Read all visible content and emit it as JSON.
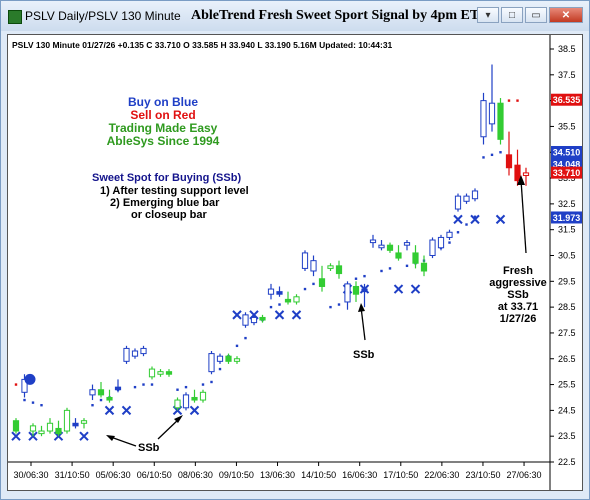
{
  "window": {
    "title": "PSLV  Daily/PSLV 130 Minute",
    "chart_title": "AbleTrend Fresh Sweet Sport Signal by 4pm ET",
    "buttons": {
      "minimize": "▾",
      "restore": "□",
      "maximize": "▭",
      "close": "✕"
    }
  },
  "info_line": "PSLV 130 Minute 01/27/26 +0.135 C 33.710 O 33.585 H 33.940 L 33.190 5.16M Updated: 10:44:31",
  "legend_block": [
    {
      "text": "Buy on Blue",
      "color": "#1f3fc6"
    },
    {
      "text": "Sell on Red",
      "color": "#e01010"
    },
    {
      "text": "Trading Made Easy",
      "color": "#2f9a1f"
    },
    {
      "text": "AbleSys Since 1994",
      "color": "#2f9a1f"
    }
  ],
  "notes": [
    {
      "text": "Sweet Spot for Buying (SSb)",
      "color": "#14148c"
    },
    {
      "text": "1) After testing support level",
      "color": "#000000"
    },
    {
      "text": "2) Emerging blue bar",
      "color": "#000000"
    },
    {
      "text": "or closeup bar",
      "color": "#000000"
    }
  ],
  "annotations": {
    "ssb_1": "SSb",
    "ssb_2": "SSb",
    "fresh": [
      "Fresh",
      "aggressive",
      "SSb",
      "at 33.71",
      "1/27/26"
    ]
  },
  "colors": {
    "blue": "#1f3fc6",
    "red": "#e01010",
    "green": "#33cc33",
    "navy": "#14148c"
  },
  "chart_data": {
    "type": "candlestick",
    "symbol": "PSLV",
    "interval": "130 Minute",
    "y_ticks": [
      "38.5",
      "37.5",
      "36.5",
      "35.5",
      "34.5",
      "33.5",
      "32.5",
      "31.5",
      "30.5",
      "29.5",
      "28.5",
      "27.5",
      "26.5",
      "25.5",
      "24.5",
      "23.5",
      "22.5"
    ],
    "ylim": [
      22.5,
      38.5
    ],
    "x_ticks": [
      "30/06:30",
      "31/10:50",
      "05/06:30",
      "06/10:50",
      "08/06:30",
      "09/10:50",
      "13/06:30",
      "14/10:50",
      "16/06:30",
      "17/10:50",
      "22/06:30",
      "23/10:50",
      "27/06:30"
    ],
    "price_labels": [
      {
        "text": "36.535",
        "value": 36.535,
        "bg": "#e01010"
      },
      {
        "text": "34.510",
        "value": 34.51,
        "bg": "#1f3fc6"
      },
      {
        "text": "34.048",
        "value": 34.048,
        "bg": "#1f3fc6"
      },
      {
        "text": "33.710",
        "value": 33.71,
        "bg": "#e01010"
      },
      {
        "text": "31.973",
        "value": 31.973,
        "bg": "#1f3fc6"
      }
    ],
    "candles": [
      {
        "o": 24.1,
        "h": 24.2,
        "l": 23.6,
        "c": 23.7,
        "color": "green"
      },
      {
        "o": 25.2,
        "h": 25.9,
        "l": 25.0,
        "c": 25.7,
        "color": "blue"
      },
      {
        "o": 23.7,
        "h": 24.0,
        "l": 23.5,
        "c": 23.9,
        "color": "green"
      },
      {
        "o": 23.6,
        "h": 23.9,
        "l": 23.5,
        "c": 23.7,
        "color": "green"
      },
      {
        "o": 23.7,
        "h": 24.2,
        "l": 23.6,
        "c": 24.0,
        "color": "green"
      },
      {
        "o": 23.8,
        "h": 24.1,
        "l": 23.5,
        "c": 23.6,
        "color": "green"
      },
      {
        "o": 23.7,
        "h": 24.6,
        "l": 23.6,
        "c": 24.5,
        "color": "green"
      },
      {
        "o": 24.0,
        "h": 24.2,
        "l": 23.8,
        "c": 23.9,
        "color": "blue"
      },
      {
        "o": 24.0,
        "h": 24.2,
        "l": 23.8,
        "c": 24.1,
        "color": "green"
      },
      {
        "o": 25.1,
        "h": 25.5,
        "l": 24.9,
        "c": 25.3,
        "color": "blue"
      },
      {
        "o": 25.3,
        "h": 25.6,
        "l": 25.0,
        "c": 25.1,
        "color": "green"
      },
      {
        "o": 25.0,
        "h": 25.3,
        "l": 24.8,
        "c": 24.9,
        "color": "green"
      },
      {
        "o": 25.4,
        "h": 25.7,
        "l": 25.2,
        "c": 25.3,
        "color": "blue"
      },
      {
        "o": 26.4,
        "h": 27.0,
        "l": 26.3,
        "c": 26.9,
        "color": "blue"
      },
      {
        "o": 26.6,
        "h": 26.9,
        "l": 26.5,
        "c": 26.8,
        "color": "blue"
      },
      {
        "o": 26.7,
        "h": 27.0,
        "l": 26.6,
        "c": 26.9,
        "color": "blue"
      },
      {
        "o": 25.8,
        "h": 26.2,
        "l": 25.7,
        "c": 26.1,
        "color": "green"
      },
      {
        "o": 25.9,
        "h": 26.1,
        "l": 25.8,
        "c": 26.0,
        "color": "green"
      },
      {
        "o": 26.0,
        "h": 26.1,
        "l": 25.8,
        "c": 25.9,
        "color": "green"
      },
      {
        "o": 24.6,
        "h": 25.0,
        "l": 24.5,
        "c": 24.9,
        "color": "green"
      },
      {
        "o": 24.6,
        "h": 25.2,
        "l": 24.5,
        "c": 25.1,
        "color": "blue"
      },
      {
        "o": 25.0,
        "h": 25.3,
        "l": 24.8,
        "c": 24.9,
        "color": "green"
      },
      {
        "o": 24.9,
        "h": 25.3,
        "l": 24.8,
        "c": 25.2,
        "color": "green"
      },
      {
        "o": 26.0,
        "h": 26.8,
        "l": 25.9,
        "c": 26.7,
        "color": "blue"
      },
      {
        "o": 26.4,
        "h": 26.7,
        "l": 26.3,
        "c": 26.6,
        "color": "blue"
      },
      {
        "o": 26.6,
        "h": 26.7,
        "l": 26.3,
        "c": 26.4,
        "color": "green"
      },
      {
        "o": 26.4,
        "h": 26.6,
        "l": 26.3,
        "c": 26.5,
        "color": "green"
      },
      {
        "o": 27.8,
        "h": 28.3,
        "l": 27.7,
        "c": 28.2,
        "color": "blue"
      },
      {
        "o": 27.9,
        "h": 28.2,
        "l": 27.8,
        "c": 28.1,
        "color": "blue"
      },
      {
        "o": 28.1,
        "h": 28.2,
        "l": 27.9,
        "c": 28.0,
        "color": "green"
      },
      {
        "o": 29.0,
        "h": 29.4,
        "l": 28.8,
        "c": 29.2,
        "color": "blue"
      },
      {
        "o": 29.1,
        "h": 29.3,
        "l": 28.9,
        "c": 29.0,
        "color": "blue"
      },
      {
        "o": 28.8,
        "h": 29.1,
        "l": 28.6,
        "c": 28.7,
        "color": "green"
      },
      {
        "o": 28.7,
        "h": 29.0,
        "l": 28.6,
        "c": 28.9,
        "color": "green"
      },
      {
        "o": 30.0,
        "h": 30.7,
        "l": 29.9,
        "c": 30.6,
        "color": "blue"
      },
      {
        "o": 29.9,
        "h": 30.5,
        "l": 29.7,
        "c": 30.3,
        "color": "blue"
      },
      {
        "o": 29.6,
        "h": 30.1,
        "l": 29.1,
        "c": 29.3,
        "color": "green"
      },
      {
        "o": 30.0,
        "h": 30.2,
        "l": 29.9,
        "c": 30.1,
        "color": "green"
      },
      {
        "o": 30.1,
        "h": 30.3,
        "l": 29.6,
        "c": 29.8,
        "color": "green"
      },
      {
        "o": 28.7,
        "h": 29.5,
        "l": 28.4,
        "c": 29.4,
        "color": "blue"
      },
      {
        "o": 29.3,
        "h": 29.5,
        "l": 28.7,
        "c": 29.0,
        "color": "green"
      },
      {
        "o": 29.2,
        "h": 29.4,
        "l": 28.5,
        "c": 29.1,
        "color": "blue"
      },
      {
        "o": 31.0,
        "h": 31.3,
        "l": 30.8,
        "c": 31.1,
        "color": "blue"
      },
      {
        "o": 30.8,
        "h": 31.1,
        "l": 30.7,
        "c": 30.9,
        "color": "blue"
      },
      {
        "o": 30.9,
        "h": 31.0,
        "l": 30.6,
        "c": 30.7,
        "color": "green"
      },
      {
        "o": 30.6,
        "h": 30.9,
        "l": 30.3,
        "c": 30.4,
        "color": "green"
      },
      {
        "o": 30.9,
        "h": 31.1,
        "l": 30.7,
        "c": 31.0,
        "color": "blue"
      },
      {
        "o": 30.6,
        "h": 30.9,
        "l": 30.0,
        "c": 30.2,
        "color": "green"
      },
      {
        "o": 30.2,
        "h": 30.5,
        "l": 29.7,
        "c": 29.9,
        "color": "green"
      },
      {
        "o": 30.5,
        "h": 31.2,
        "l": 30.4,
        "c": 31.1,
        "color": "blue"
      },
      {
        "o": 30.8,
        "h": 31.3,
        "l": 30.7,
        "c": 31.2,
        "color": "blue"
      },
      {
        "o": 31.2,
        "h": 31.5,
        "l": 31.1,
        "c": 31.4,
        "color": "blue"
      },
      {
        "o": 32.3,
        "h": 32.9,
        "l": 32.2,
        "c": 32.8,
        "color": "blue"
      },
      {
        "o": 32.6,
        "h": 32.9,
        "l": 32.5,
        "c": 32.8,
        "color": "blue"
      },
      {
        "o": 32.7,
        "h": 33.1,
        "l": 32.6,
        "c": 33.0,
        "color": "blue"
      },
      {
        "o": 35.1,
        "h": 36.8,
        "l": 34.8,
        "c": 36.5,
        "color": "blue"
      },
      {
        "o": 35.6,
        "h": 37.9,
        "l": 35.3,
        "c": 36.4,
        "color": "blue"
      },
      {
        "o": 36.4,
        "h": 36.6,
        "l": 34.8,
        "c": 35.0,
        "color": "green"
      },
      {
        "o": 34.4,
        "h": 35.3,
        "l": 33.6,
        "c": 33.9,
        "color": "red"
      },
      {
        "o": 34.0,
        "h": 34.6,
        "l": 33.2,
        "c": 33.4,
        "color": "red"
      },
      {
        "o": 33.6,
        "h": 33.9,
        "l": 33.2,
        "c": 33.7,
        "color": "red"
      }
    ],
    "stop_dots": [
      {
        "i": 0,
        "v": 25.5,
        "color": "red"
      },
      {
        "i": 1,
        "v": 24.9,
        "color": "blue"
      },
      {
        "i": 2,
        "v": 24.8,
        "color": "blue"
      },
      {
        "i": 3,
        "v": 24.7,
        "color": "blue"
      },
      {
        "i": 9,
        "v": 24.7,
        "color": "blue"
      },
      {
        "i": 10,
        "v": 24.9,
        "color": "blue"
      },
      {
        "i": 11,
        "v": 25.0,
        "color": "blue"
      },
      {
        "i": 12,
        "v": 25.3,
        "color": "blue"
      },
      {
        "i": 14,
        "v": 25.4,
        "color": "blue"
      },
      {
        "i": 15,
        "v": 25.5,
        "color": "blue"
      },
      {
        "i": 16,
        "v": 25.5,
        "color": "blue"
      },
      {
        "i": 19,
        "v": 25.3,
        "color": "blue"
      },
      {
        "i": 20,
        "v": 25.4,
        "color": "blue"
      },
      {
        "i": 22,
        "v": 25.5,
        "color": "blue"
      },
      {
        "i": 23,
        "v": 25.6,
        "color": "blue"
      },
      {
        "i": 24,
        "v": 26.1,
        "color": "blue"
      },
      {
        "i": 25,
        "v": 26.6,
        "color": "blue"
      },
      {
        "i": 26,
        "v": 27.0,
        "color": "blue"
      },
      {
        "i": 27,
        "v": 27.3,
        "color": "blue"
      },
      {
        "i": 29,
        "v": 28.0,
        "color": "blue"
      },
      {
        "i": 30,
        "v": 28.5,
        "color": "blue"
      },
      {
        "i": 31,
        "v": 28.6,
        "color": "blue"
      },
      {
        "i": 33,
        "v": 28.8,
        "color": "blue"
      },
      {
        "i": 34,
        "v": 29.2,
        "color": "blue"
      },
      {
        "i": 35,
        "v": 29.4,
        "color": "blue"
      },
      {
        "i": 36,
        "v": 29.5,
        "color": "blue"
      },
      {
        "i": 37,
        "v": 28.5,
        "color": "blue"
      },
      {
        "i": 38,
        "v": 28.6,
        "color": "blue"
      },
      {
        "i": 40,
        "v": 29.6,
        "color": "blue"
      },
      {
        "i": 41,
        "v": 29.7,
        "color": "blue"
      },
      {
        "i": 43,
        "v": 29.9,
        "color": "blue"
      },
      {
        "i": 44,
        "v": 30.0,
        "color": "blue"
      },
      {
        "i": 46,
        "v": 30.1,
        "color": "blue"
      },
      {
        "i": 47,
        "v": 30.2,
        "color": "blue"
      },
      {
        "i": 48,
        "v": 30.3,
        "color": "blue"
      },
      {
        "i": 49,
        "v": 30.6,
        "color": "blue"
      },
      {
        "i": 50,
        "v": 30.8,
        "color": "blue"
      },
      {
        "i": 51,
        "v": 31.0,
        "color": "blue"
      },
      {
        "i": 52,
        "v": 31.4,
        "color": "blue"
      },
      {
        "i": 53,
        "v": 31.7,
        "color": "blue"
      },
      {
        "i": 54,
        "v": 32.0,
        "color": "blue"
      },
      {
        "i": 55,
        "v": 34.3,
        "color": "blue"
      },
      {
        "i": 56,
        "v": 34.4,
        "color": "blue"
      },
      {
        "i": 57,
        "v": 34.5,
        "color": "blue"
      },
      {
        "i": 58,
        "v": 36.5,
        "color": "red"
      },
      {
        "i": 59,
        "v": 36.5,
        "color": "red"
      }
    ],
    "support_x": [
      {
        "i": 0,
        "v": 23.5
      },
      {
        "i": 2,
        "v": 23.5
      },
      {
        "i": 5,
        "v": 23.5
      },
      {
        "i": 8,
        "v": 23.5
      },
      {
        "i": 11,
        "v": 24.5
      },
      {
        "i": 13,
        "v": 24.5
      },
      {
        "i": 19,
        "v": 24.5
      },
      {
        "i": 21,
        "v": 24.5
      },
      {
        "i": 26,
        "v": 28.2
      },
      {
        "i": 28,
        "v": 28.2
      },
      {
        "i": 31,
        "v": 28.2
      },
      {
        "i": 33,
        "v": 28.2
      },
      {
        "i": 39,
        "v": 29.2
      },
      {
        "i": 41,
        "v": 29.2
      },
      {
        "i": 45,
        "v": 29.2
      },
      {
        "i": 47,
        "v": 29.2
      },
      {
        "i": 52,
        "v": 31.9
      },
      {
        "i": 54,
        "v": 31.9
      },
      {
        "i": 57,
        "v": 31.9
      }
    ],
    "ssb_markers": [
      {
        "i": 0,
        "v": 25.7
      },
      {
        "i": 8,
        "v": 23.5
      },
      {
        "i": 21,
        "v": 24.8
      },
      {
        "i": 39,
        "v": 28.6
      },
      {
        "i": 59,
        "v": 33.7
      }
    ]
  }
}
